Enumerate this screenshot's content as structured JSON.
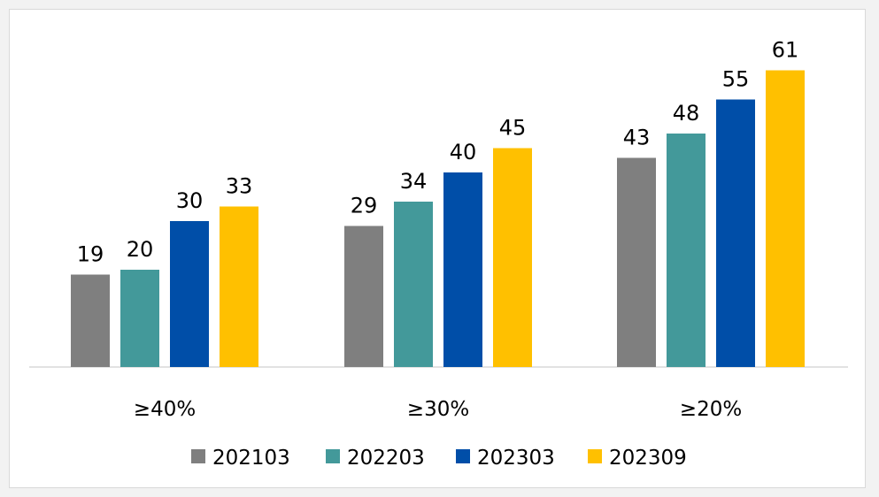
{
  "chart_data": {
    "type": "bar",
    "title": "",
    "xlabel": "",
    "ylabel": "",
    "categories": [
      "≥40%",
      "≥30%",
      "≥20%"
    ],
    "series": [
      {
        "name": "202103",
        "values": [
          19,
          29,
          43
        ],
        "color": "#7f7f7f"
      },
      {
        "name": "202203",
        "values": [
          20,
          34,
          48
        ],
        "color": "#43999a"
      },
      {
        "name": "202303",
        "values": [
          30,
          40,
          55
        ],
        "color": "#004ea8"
      },
      {
        "name": "202309",
        "values": [
          33,
          45,
          61
        ],
        "color": "#ffc000"
      }
    ],
    "ylim": [
      0,
      61
    ],
    "grid": false,
    "legend_position": "bottom",
    "data_labels": true
  }
}
